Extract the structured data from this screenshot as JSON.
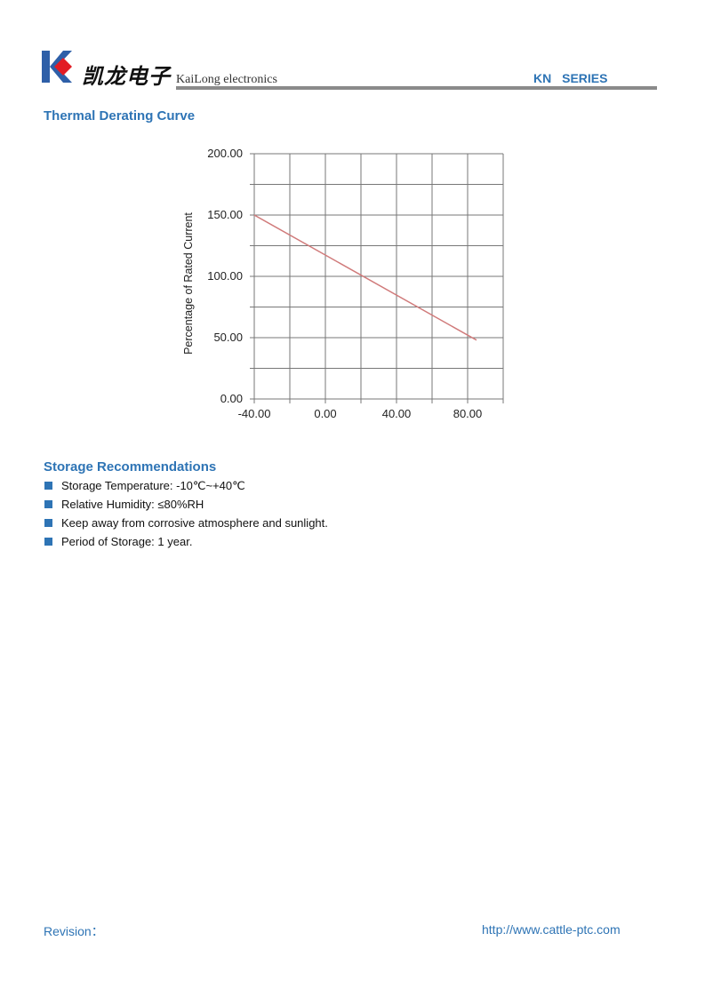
{
  "header": {
    "logo_cn": "凯龙电子",
    "logo_en": "KaiLong electronics",
    "series": "KN SERIES",
    "brand_colors": {
      "blue": "#2e5fa8",
      "red": "#e21c24"
    }
  },
  "sections": {
    "thermal_title": "Thermal Derating Curve",
    "storage_title": "Storage Recommendations",
    "storage_items": [
      "Storage Temperature: -10℃~+40℃",
      "Relative Humidity: ≤80%RH",
      "Keep away from corrosive atmosphere and sunlight.",
      "Period of Storage: 1 year."
    ]
  },
  "chart_data": {
    "type": "line",
    "title": "",
    "xlabel": "",
    "ylabel": "Percentage of Rated Current",
    "xlim": [
      -40,
      100
    ],
    "ylim": [
      0,
      200
    ],
    "x_ticks": [
      "-40.00",
      "0.00",
      "40.00",
      "80.00"
    ],
    "y_ticks": [
      "0.00",
      "50.00",
      "100.00",
      "150.00",
      "200.00"
    ],
    "grid": true,
    "line_color": "#d07a7a",
    "series": [
      {
        "x": [
          -40,
          85
        ],
        "y": [
          150,
          48
        ]
      }
    ]
  },
  "footer": {
    "revision": "Revision：",
    "url": "http://www.cattle-ptc.com"
  }
}
